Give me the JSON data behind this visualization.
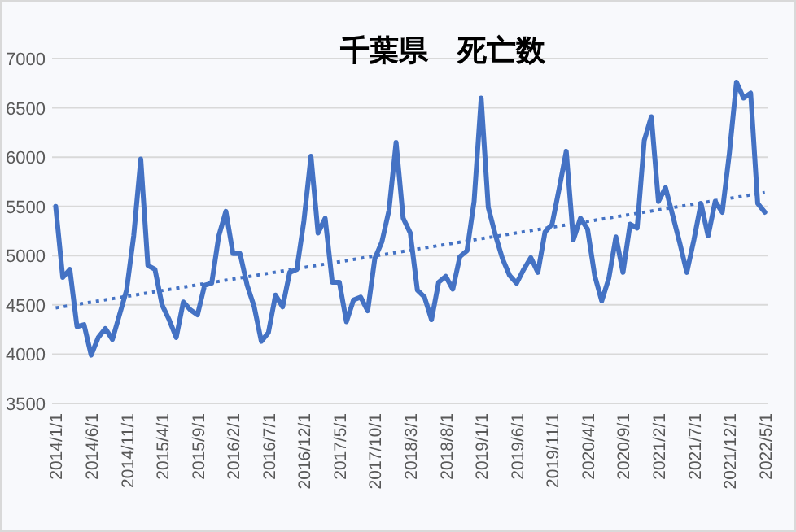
{
  "chart_data": {
    "type": "line",
    "title": "千葉県　死亡数",
    "x": [
      "2014-01",
      "2014-02",
      "2014-03",
      "2014-04",
      "2014-05",
      "2014-06",
      "2014-07",
      "2014-08",
      "2014-09",
      "2014-10",
      "2014-11",
      "2014-12",
      "2015-01",
      "2015-02",
      "2015-03",
      "2015-04",
      "2015-05",
      "2015-06",
      "2015-07",
      "2015-08",
      "2015-09",
      "2015-10",
      "2015-11",
      "2015-12",
      "2016-01",
      "2016-02",
      "2016-03",
      "2016-04",
      "2016-05",
      "2016-06",
      "2016-07",
      "2016-08",
      "2016-09",
      "2016-10",
      "2016-11",
      "2016-12",
      "2017-01",
      "2017-02",
      "2017-03",
      "2017-04",
      "2017-05",
      "2017-06",
      "2017-07",
      "2017-08",
      "2017-09",
      "2017-10",
      "2017-11",
      "2017-12",
      "2018-01",
      "2018-02",
      "2018-03",
      "2018-04",
      "2018-05",
      "2018-06",
      "2018-07",
      "2018-08",
      "2018-09",
      "2018-10",
      "2018-11",
      "2018-12",
      "2019-01",
      "2019-02",
      "2019-03",
      "2019-04",
      "2019-05",
      "2019-06",
      "2019-07",
      "2019-08",
      "2019-09",
      "2019-10",
      "2019-11",
      "2019-12",
      "2020-01",
      "2020-02",
      "2020-03",
      "2020-04",
      "2020-05",
      "2020-06",
      "2020-07",
      "2020-08",
      "2020-09",
      "2020-10",
      "2020-11",
      "2020-12",
      "2021-01",
      "2021-02",
      "2021-03",
      "2021-04",
      "2021-05",
      "2021-06",
      "2021-07",
      "2021-08",
      "2021-09",
      "2021-10",
      "2021-11",
      "2021-12",
      "2022-01",
      "2022-02",
      "2022-03",
      "2022-04",
      "2022-05"
    ],
    "series": [
      {
        "color": "#4472c4",
        "line_style": "solid",
        "values": [
          5500,
          4780,
          4860,
          4280,
          4300,
          3990,
          4170,
          4260,
          4150,
          4400,
          4650,
          5200,
          5980,
          4900,
          4860,
          4500,
          4350,
          4170,
          4530,
          4450,
          4400,
          4700,
          4720,
          5200,
          5450,
          5020,
          5020,
          4700,
          4480,
          4130,
          4220,
          4600,
          4480,
          4830,
          4860,
          5350,
          6010,
          5230,
          5380,
          4730,
          4730,
          4330,
          4550,
          4580,
          4440,
          4970,
          5140,
          5460,
          6150,
          5380,
          5230,
          4650,
          4580,
          4350,
          4730,
          4790,
          4660,
          4990,
          5050,
          5550,
          6600,
          5490,
          5210,
          4970,
          4800,
          4720,
          4860,
          4980,
          4830,
          5240,
          5320,
          5680,
          6060,
          5160,
          5380,
          5270,
          4800,
          4540,
          4770,
          5190,
          4830,
          5320,
          5280,
          6170,
          6410,
          5550,
          5690,
          5410,
          5130,
          4830,
          5160,
          5530,
          5200,
          5550,
          5440,
          6040,
          6760,
          6600,
          6650,
          5530,
          5440
        ]
      },
      {
        "type": "line",
        "color": "#4472c4",
        "line_style": "dotted",
        "x": [
          "2014-01",
          "2022-05"
        ],
        "values": [
          4470,
          5640
        ]
      }
    ],
    "xlim": [
      "2013-12-16",
      "2022-05-16"
    ],
    "xticks": [
      {
        "value": "2014-01",
        "label": "2014/1/1"
      },
      {
        "value": "2014-06",
        "label": "2014/6/1"
      },
      {
        "value": "2014-11",
        "label": "2014/11/1"
      },
      {
        "value": "2015-04",
        "label": "2015/4/1"
      },
      {
        "value": "2015-09",
        "label": "2015/9/1"
      },
      {
        "value": "2016-02",
        "label": "2016/2/1"
      },
      {
        "value": "2016-07",
        "label": "2016/7/1"
      },
      {
        "value": "2016-12",
        "label": "2016/12/1"
      },
      {
        "value": "2017-05",
        "label": "2017/5/1"
      },
      {
        "value": "2017-10",
        "label": "2017/10/1"
      },
      {
        "value": "2018-03",
        "label": "2018/3/1"
      },
      {
        "value": "2018-08",
        "label": "2018/8/1"
      },
      {
        "value": "2019-01",
        "label": "2019/1/1"
      },
      {
        "value": "2019-06",
        "label": "2019/6/1"
      },
      {
        "value": "2019-11",
        "label": "2019/11/1"
      },
      {
        "value": "2020-04",
        "label": "2020/4/1"
      },
      {
        "value": "2020-09",
        "label": "2020/9/1"
      },
      {
        "value": "2021-02",
        "label": "2021/2/1"
      },
      {
        "value": "2021-07",
        "label": "2021/7/1"
      },
      {
        "value": "2021-12",
        "label": "2021/12/1"
      },
      {
        "value": "2022-05",
        "label": "2022/5/1"
      }
    ],
    "ylim": [
      3500,
      7000
    ],
    "yticks": [
      3500,
      4000,
      4500,
      5000,
      5500,
      6000,
      6500,
      7000
    ],
    "grid": "y"
  }
}
